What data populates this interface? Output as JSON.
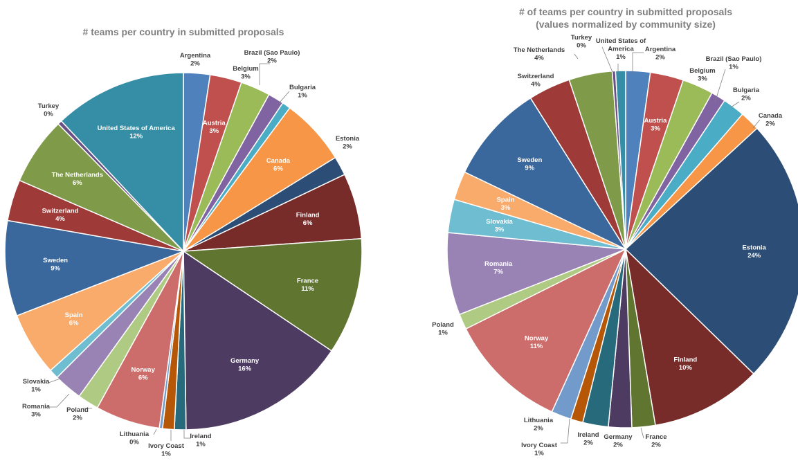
{
  "chart_data": [
    {
      "type": "pie",
      "title": "# teams per country in submitted proposals",
      "slices": [
        {
          "label": "Argentina",
          "pct_label": "2%",
          "value": 2.5,
          "color": "#4F81BD"
        },
        {
          "label": "Austria",
          "pct_label": "3%",
          "value": 3,
          "color": "#C0504D"
        },
        {
          "label": "Belgium",
          "pct_label": "3%",
          "value": 2.8,
          "color": "#9BBB59"
        },
        {
          "label": "Brazil (Sao Paulo)",
          "pct_label": "2%",
          "value": 1.5,
          "color": "#8064A2"
        },
        {
          "label": "Bulgaria",
          "pct_label": "1%",
          "value": 0.8,
          "color": "#4BACC6"
        },
        {
          "label": "Canada",
          "pct_label": "6%",
          "value": 6.3,
          "color": "#F79646"
        },
        {
          "label": "Estonia",
          "pct_label": "2%",
          "value": 1.8,
          "color": "#2C4D75"
        },
        {
          "label": "Finland",
          "pct_label": "6%",
          "value": 6.2,
          "color": "#772C2A"
        },
        {
          "label": "France",
          "pct_label": "11%",
          "value": 11,
          "color": "#5F7530"
        },
        {
          "label": "Germany",
          "pct_label": "16%",
          "value": 16,
          "color": "#4D3B62"
        },
        {
          "label": "Ireland",
          "pct_label": "1%",
          "value": 1.1,
          "color": "#276A7C"
        },
        {
          "label": "Ivory Coast",
          "pct_label": "1%",
          "value": 1.1,
          "color": "#B65708"
        },
        {
          "label": "Lithuania",
          "pct_label": "0%",
          "value": 0.3,
          "color": "#729ACA"
        },
        {
          "label": "Norway",
          "pct_label": "6%",
          "value": 6.1,
          "color": "#CD6D6B"
        },
        {
          "label": "Poland",
          "pct_label": "2%",
          "value": 2,
          "color": "#AFCA82"
        },
        {
          "label": "Romania",
          "pct_label": "3%",
          "value": 2.7,
          "color": "#9983B5"
        },
        {
          "label": "Slovakia",
          "pct_label": "1%",
          "value": 0.9,
          "color": "#6FBDD1"
        },
        {
          "label": "Spain",
          "pct_label": "6%",
          "value": 6,
          "color": "#F9AB6B"
        },
        {
          "label": "Sweden",
          "pct_label": "9%",
          "value": 9,
          "color": "#3A679C"
        },
        {
          "label": "Switzerland",
          "pct_label": "4%",
          "value": 3.9,
          "color": "#9E3B38"
        },
        {
          "label": "The Netherlands",
          "pct_label": "6%",
          "value": 6.4,
          "color": "#7F9A48"
        },
        {
          "label": "Turkey",
          "pct_label": "0%",
          "value": 0.4,
          "color": "#695185"
        },
        {
          "label": "United States of America",
          "pct_label": "12%",
          "value": 12.5,
          "color": "#358EA6"
        }
      ]
    },
    {
      "type": "pie",
      "title": "# of teams per country in submitted proposals",
      "subtitle": "(values normalized by community size)",
      "slices": [
        {
          "label": "Argentina",
          "pct_label": "2%",
          "value": 2.2,
          "color": "#4F81BD"
        },
        {
          "label": "Austria",
          "pct_label": "3%",
          "value": 3,
          "color": "#C0504D"
        },
        {
          "label": "Belgium",
          "pct_label": "3%",
          "value": 2.8,
          "color": "#9BBB59"
        },
        {
          "label": "Brazil (Sao Paulo)",
          "pct_label": "1%",
          "value": 1.3,
          "color": "#8064A2"
        },
        {
          "label": "Bulgaria",
          "pct_label": "2%",
          "value": 2,
          "color": "#4BACC6"
        },
        {
          "label": "Canada",
          "pct_label": "2%",
          "value": 1.8,
          "color": "#F79646"
        },
        {
          "label": "Estonia",
          "pct_label": "24%",
          "value": 24,
          "color": "#2C4D75"
        },
        {
          "label": "Finland",
          "pct_label": "10%",
          "value": 10,
          "color": "#772C2A"
        },
        {
          "label": "France",
          "pct_label": "2%",
          "value": 2.1,
          "color": "#5F7530"
        },
        {
          "label": "Germany",
          "pct_label": "2%",
          "value": 2.1,
          "color": "#4D3B62"
        },
        {
          "label": "Ireland",
          "pct_label": "2%",
          "value": 2.3,
          "color": "#276A7C"
        },
        {
          "label": "Ivory Coast",
          "pct_label": "1%",
          "value": 1.1,
          "color": "#B65708"
        },
        {
          "label": "Lithuania",
          "pct_label": "2%",
          "value": 1.8,
          "color": "#729ACA"
        },
        {
          "label": "Norway",
          "pct_label": "11%",
          "value": 10.8,
          "color": "#CD6D6B"
        },
        {
          "label": "Poland",
          "pct_label": "1%",
          "value": 1.4,
          "color": "#AFCA82"
        },
        {
          "label": "Romania",
          "pct_label": "7%",
          "value": 7.4,
          "color": "#9983B5"
        },
        {
          "label": "Slovakia",
          "pct_label": "3%",
          "value": 3,
          "color": "#6FBDD1"
        },
        {
          "label": "Spain",
          "pct_label": "3%",
          "value": 2.6,
          "color": "#F9AB6B"
        },
        {
          "label": "Sweden",
          "pct_label": "9%",
          "value": 8.9,
          "color": "#3A679C"
        },
        {
          "label": "Switzerland",
          "pct_label": "4%",
          "value": 3.8,
          "color": "#9E3B38"
        },
        {
          "label": "The Netherlands",
          "pct_label": "4%",
          "value": 3.9,
          "color": "#7F9A48"
        },
        {
          "label": "Turkey",
          "pct_label": "0%",
          "value": 0.3,
          "color": "#695185"
        },
        {
          "label": "United States of America",
          "pct_label": "1%",
          "value": 0.9,
          "color": "#358EA6"
        }
      ]
    }
  ]
}
